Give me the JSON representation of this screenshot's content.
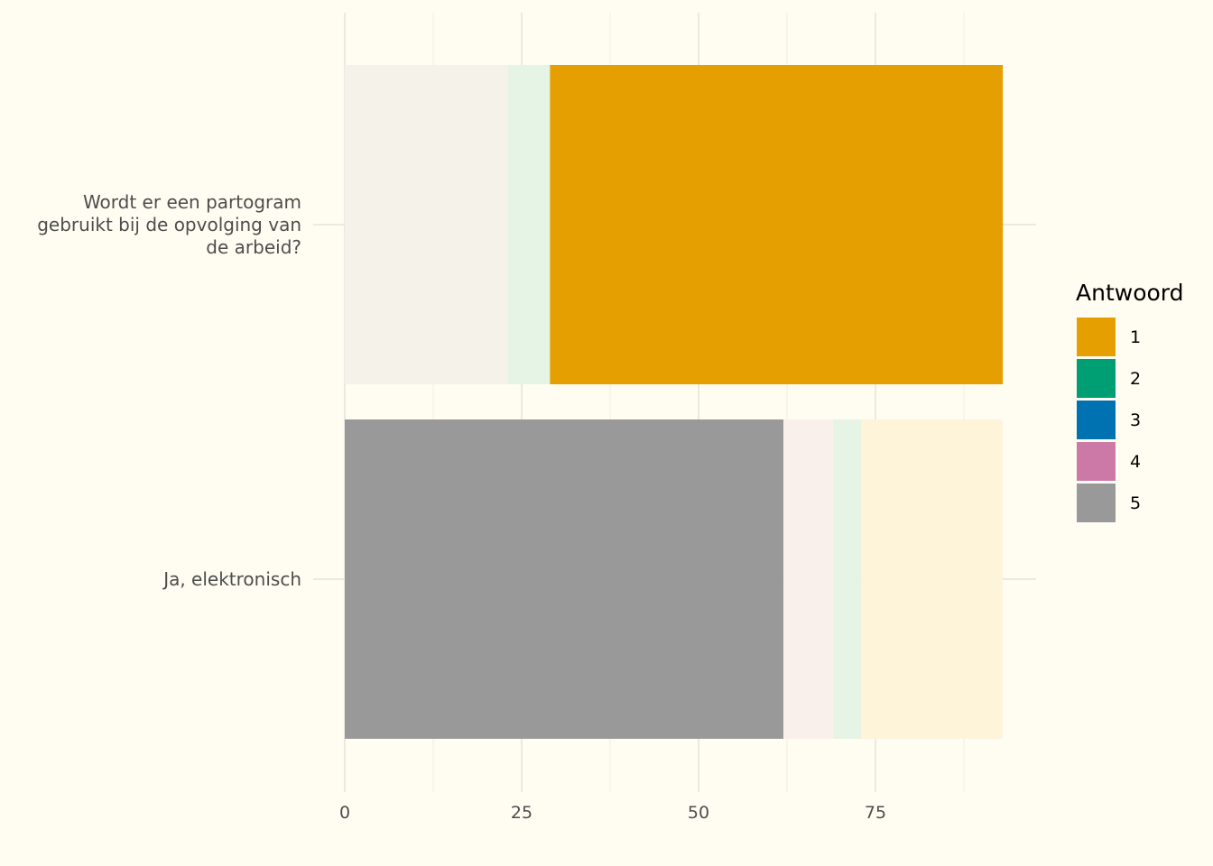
{
  "chart_data": {
    "type": "bar",
    "orientation": "horizontal",
    "stacked": true,
    "categories": [
      "Wordt er een partogram gebruikt bij de opvolging van de arbeid?",
      "Ja, elektronisch"
    ],
    "category_label_lines": [
      [
        "Wordt er een partogram",
        "gebruikt bij de opvolging van",
        "de arbeid?"
      ],
      [
        "Ja, elektronisch"
      ]
    ],
    "highlight": [
      "1",
      "5"
    ],
    "series": [
      {
        "name": "5",
        "color": "#999999",
        "values": [
          23,
          62
        ]
      },
      {
        "name": "4",
        "color": "#cc79a7",
        "values": [
          0,
          7
        ]
      },
      {
        "name": "3",
        "color": "#0072b2",
        "values": [
          0,
          0
        ]
      },
      {
        "name": "2",
        "color": "#009e73",
        "values": [
          6,
          4
        ]
      },
      {
        "name": "1",
        "color": "#e69f00",
        "values": [
          64,
          20
        ]
      }
    ],
    "xticks": [
      0,
      25,
      50,
      75
    ],
    "xlim": [
      0,
      97
    ],
    "xlabel": "",
    "ylabel": "",
    "title": "",
    "grid": true,
    "legend": {
      "title": "Antwoord",
      "placement": "right",
      "entries": [
        {
          "label": "1",
          "color": "#e69f00"
        },
        {
          "label": "2",
          "color": "#009e73"
        },
        {
          "label": "3",
          "color": "#0072b2"
        },
        {
          "label": "4",
          "color": "#cc79a7"
        },
        {
          "label": "5",
          "color": "#999999"
        }
      ]
    },
    "background_color": "#fffdf2"
  }
}
